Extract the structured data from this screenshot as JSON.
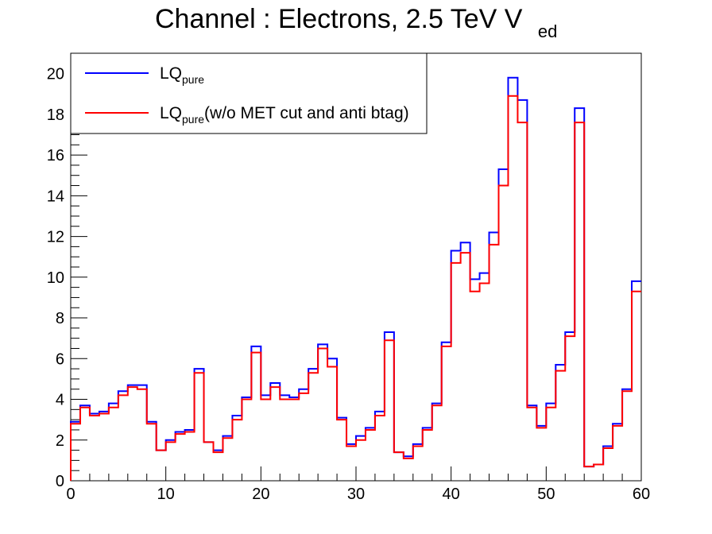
{
  "chart_data": {
    "type": "line",
    "title": {
      "main": "Channel : Electrons, 2.5 TeV V",
      "subscript": "ed"
    },
    "xlabel": "",
    "ylabel": "",
    "xlim": [
      0,
      60
    ],
    "ylim": [
      0,
      21
    ],
    "x_ticks": [
      0,
      10,
      20,
      30,
      40,
      50,
      60
    ],
    "x_tick_labels": [
      "0",
      "10",
      "20",
      "30",
      "40",
      "50",
      "60"
    ],
    "y_ticks": [
      0,
      2,
      4,
      6,
      8,
      10,
      12,
      14,
      16,
      18,
      20
    ],
    "y_tick_labels": [
      "0",
      "2",
      "4",
      "6",
      "8",
      "10",
      "12",
      "14",
      "16",
      "18",
      "20"
    ],
    "grid": false,
    "legend_position": "top-left",
    "bin_edges_start": 0,
    "bin_width": 1,
    "series": [
      {
        "legend_main": "LQ",
        "legend_sub": "pure",
        "legend_suffix": "",
        "color": "#0000ff",
        "values": [
          2.9,
          3.7,
          3.3,
          3.4,
          3.8,
          4.4,
          4.7,
          4.7,
          2.9,
          1.5,
          2.0,
          2.4,
          2.5,
          5.5,
          1.9,
          1.5,
          2.2,
          3.2,
          4.1,
          6.6,
          4.2,
          4.8,
          4.2,
          4.1,
          4.5,
          5.5,
          6.7,
          6.0,
          3.1,
          1.8,
          2.2,
          2.6,
          3.4,
          7.3,
          1.4,
          1.2,
          1.8,
          2.6,
          3.8,
          6.8,
          11.3,
          11.7,
          9.9,
          10.2,
          12.2,
          15.3,
          19.8,
          18.7,
          3.7,
          2.7,
          3.8,
          5.7,
          7.3,
          18.3,
          0.7,
          0.8,
          1.7,
          2.8,
          4.5,
          9.8
        ]
      },
      {
        "legend_main": "LQ",
        "legend_sub": "pure",
        "legend_suffix": "(w/o MET cut and anti btag)",
        "color": "#ff0000",
        "values": [
          2.8,
          3.6,
          3.2,
          3.3,
          3.6,
          4.2,
          4.6,
          4.5,
          2.8,
          1.5,
          1.9,
          2.3,
          2.4,
          5.3,
          1.9,
          1.4,
          2.1,
          3.0,
          4.0,
          6.3,
          4.0,
          4.6,
          4.0,
          4.0,
          4.3,
          5.3,
          6.5,
          5.6,
          3.0,
          1.7,
          2.0,
          2.5,
          3.2,
          6.9,
          1.4,
          1.1,
          1.7,
          2.5,
          3.7,
          6.6,
          10.7,
          11.2,
          9.3,
          9.7,
          11.6,
          14.5,
          18.9,
          17.6,
          3.6,
          2.6,
          3.6,
          5.4,
          7.1,
          17.6,
          0.7,
          0.8,
          1.6,
          2.7,
          4.4,
          9.3
        ]
      }
    ]
  }
}
